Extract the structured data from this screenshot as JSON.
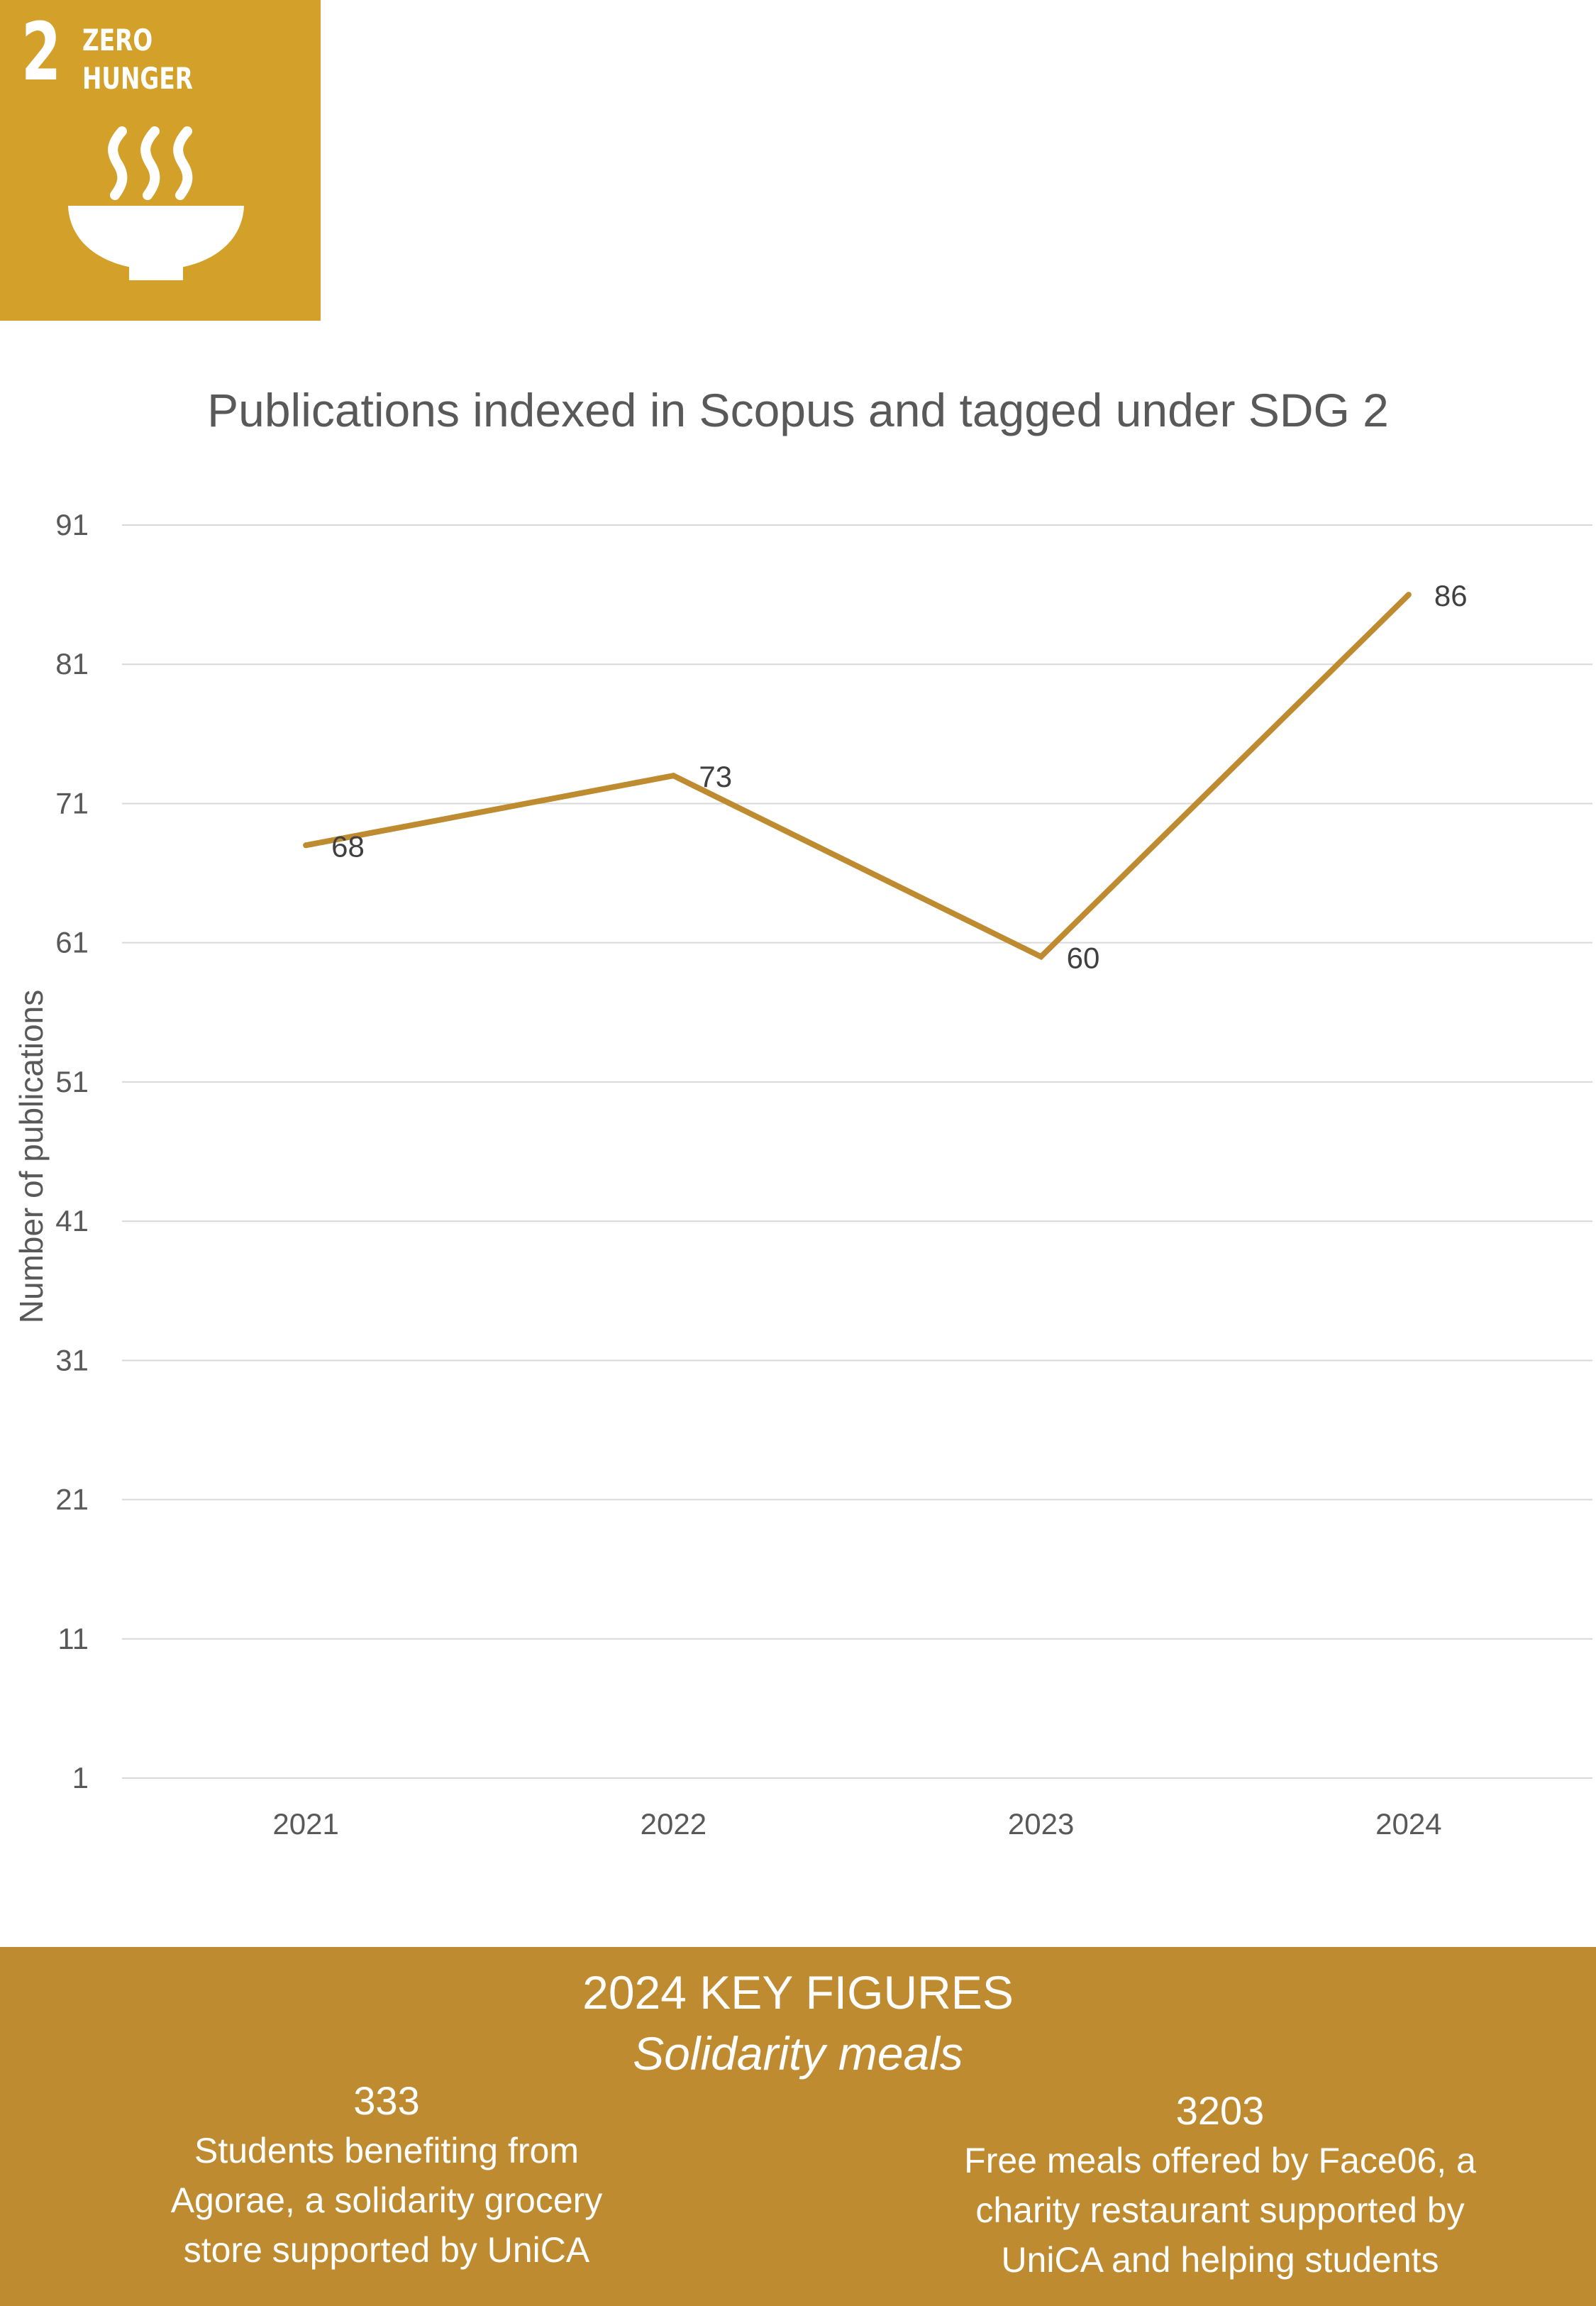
{
  "badge": {
    "number": "2",
    "title_line1": "ZERO",
    "title_line2": "HUNGER",
    "icon": "soup-bowl-icon",
    "color": "#D3A029"
  },
  "chart_data": {
    "type": "line",
    "title": "Publications indexed in Scopus and tagged under SDG 2",
    "xlabel": "",
    "ylabel": "Number of publications",
    "categories": [
      "2021",
      "2022",
      "2023",
      "2024"
    ],
    "series": [
      {
        "name": "Publications",
        "values": [
          68,
          73,
          60,
          86
        ],
        "color": "#BF8B30"
      }
    ],
    "yticks": [
      1,
      11,
      21,
      31,
      41,
      51,
      61,
      71,
      81,
      91
    ],
    "ylim": [
      1,
      91
    ],
    "grid": true,
    "data_labels": true
  },
  "key_figures": {
    "heading": "2024 KEY FIGURES",
    "subheading": "Solidarity meals",
    "items": [
      {
        "value": "333",
        "description": "Students benefiting from\nAgorae, a solidarity grocery\nstore supported by UniCA"
      },
      {
        "value": "3203",
        "description": "Free meals  offered by Face06, a\ncharity restaurant supported by\nUniCA and helping students"
      }
    ],
    "background_color": "#BF8B30"
  }
}
